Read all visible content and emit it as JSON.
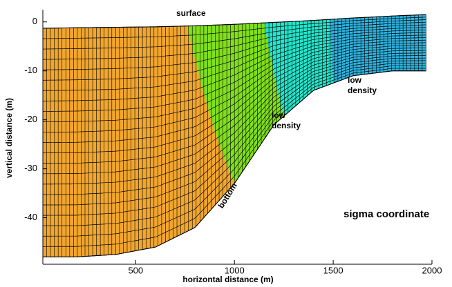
{
  "chart_data": {
    "type": "sigma-mesh",
    "xlabel": "horizontal distance (m)",
    "ylabel": "vertical distance (m)",
    "xlim": [
      30,
      2000
    ],
    "ylim": [
      -49.5,
      2.5
    ],
    "xticks": [
      500,
      1000,
      1500,
      2000
    ],
    "yticks": [
      0,
      -10,
      -20,
      -30,
      -40
    ],
    "x": [
      30,
      200,
      400,
      600,
      800,
      1000,
      1200,
      1400,
      1600,
      1800,
      1970
    ],
    "surface": [
      -1.3,
      -1.2,
      -1.1,
      -1,
      -0.8,
      -0.5,
      -0.1,
      0.3,
      0.8,
      1.2,
      1.5
    ],
    "bottom": [
      -48,
      -48,
      -47.5,
      -46,
      -42,
      -33,
      -21,
      -14,
      -11,
      -10,
      -10
    ],
    "zones": [
      {
        "color": "#f2a62e",
        "x_surface": 30,
        "x_bottom": 30
      },
      {
        "color": "#80e01c",
        "x_surface": 760,
        "x_bottom": 1000
      },
      {
        "color": "#22e6cc",
        "x_surface": 1150,
        "x_bottom": 1250
      },
      {
        "color": "#2fb4e0",
        "x_surface": 1480,
        "x_bottom": 1500
      }
    ],
    "annotations": [
      "surface",
      "bottom",
      "low",
      "density",
      "low",
      "density",
      "sigma coordinate"
    ]
  }
}
